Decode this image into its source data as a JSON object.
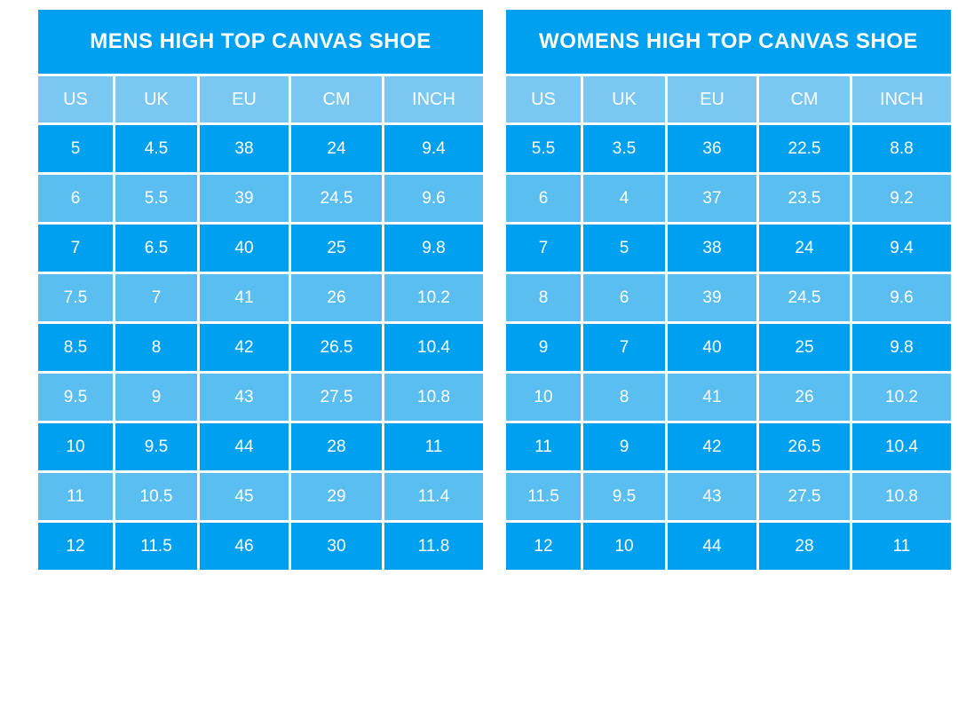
{
  "colors": {
    "title_bg": "#00A0F0",
    "header_bg": "#7AC8F2",
    "row_dark": "#00A0F0",
    "row_light": "#5BBEF0",
    "text": "#FFFFFF",
    "grid": "#FFFFFF",
    "page_bg": "#FFFFFF"
  },
  "chart_data": [
    {
      "type": "table",
      "title": "MENS HIGH TOP CANVAS SHOE",
      "columns": [
        "US",
        "UK",
        "EU",
        "CM",
        "INCH"
      ],
      "rows": [
        [
          "5",
          "4.5",
          "38",
          "24",
          "9.4"
        ],
        [
          "6",
          "5.5",
          "39",
          "24.5",
          "9.6"
        ],
        [
          "7",
          "6.5",
          "40",
          "25",
          "9.8"
        ],
        [
          "7.5",
          "7",
          "41",
          "26",
          "10.2"
        ],
        [
          "8.5",
          "8",
          "42",
          "26.5",
          "10.4"
        ],
        [
          "9.5",
          "9",
          "43",
          "27.5",
          "10.8"
        ],
        [
          "10",
          "9.5",
          "44",
          "28",
          "11"
        ],
        [
          "11",
          "10.5",
          "45",
          "29",
          "11.4"
        ],
        [
          "12",
          "11.5",
          "46",
          "30",
          "11.8"
        ]
      ]
    },
    {
      "type": "table",
      "title": "WOMENS HIGH TOP CANVAS SHOE",
      "columns": [
        "US",
        "UK",
        "EU",
        "CM",
        "INCH"
      ],
      "rows": [
        [
          "5.5",
          "3.5",
          "36",
          "22.5",
          "8.8"
        ],
        [
          "6",
          "4",
          "37",
          "23.5",
          "9.2"
        ],
        [
          "7",
          "5",
          "38",
          "24",
          "9.4"
        ],
        [
          "8",
          "6",
          "39",
          "24.5",
          "9.6"
        ],
        [
          "9",
          "7",
          "40",
          "25",
          "9.8"
        ],
        [
          "10",
          "8",
          "41",
          "26",
          "10.2"
        ],
        [
          "11",
          "9",
          "42",
          "26.5",
          "10.4"
        ],
        [
          "11.5",
          "9.5",
          "43",
          "27.5",
          "10.8"
        ],
        [
          "12",
          "10",
          "44",
          "28",
          "11"
        ]
      ]
    }
  ]
}
